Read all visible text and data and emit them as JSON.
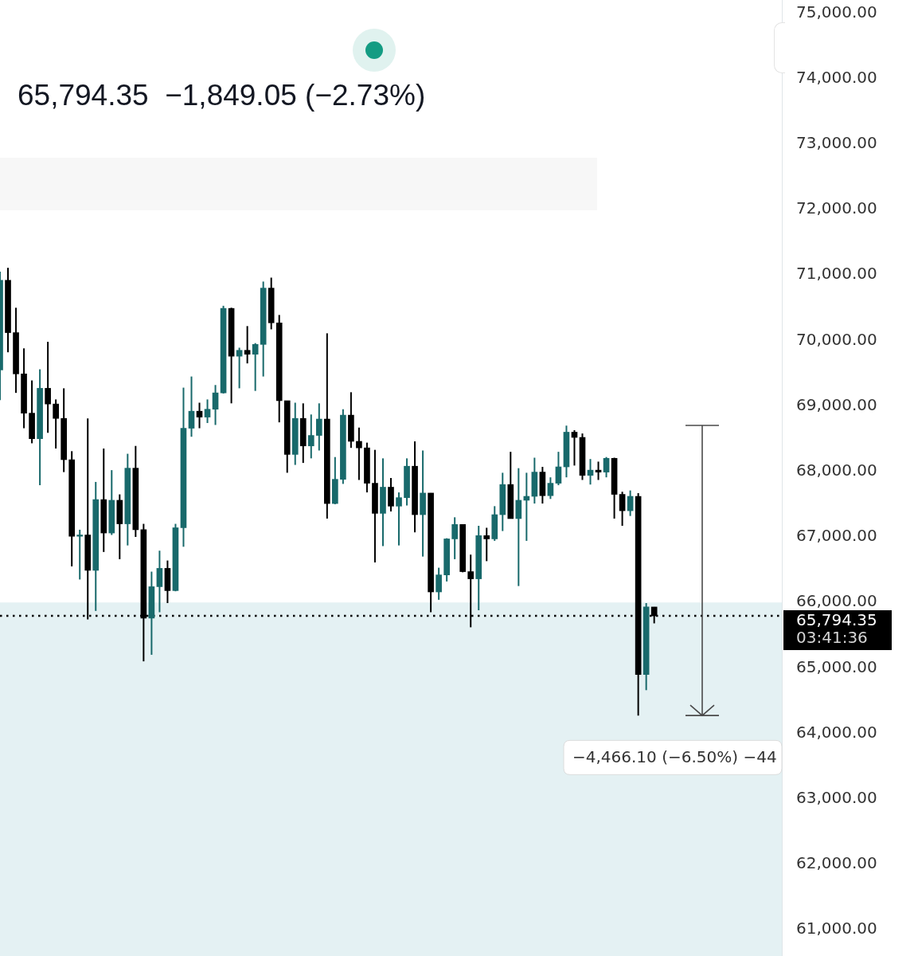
{
  "chart_data": {
    "type": "candlestick",
    "subtitle": "65,794.35  −1,849.05 (−2.73%)",
    "categories": [
      null,
      null,
      null,
      null,
      null,
      null,
      null,
      null,
      null,
      null,
      null,
      null,
      null,
      null,
      null,
      null,
      null,
      null,
      null,
      null,
      null,
      null,
      null,
      null,
      null,
      null,
      null,
      null,
      null,
      null,
      null,
      null,
      null,
      null,
      null,
      null,
      null,
      null,
      null,
      null,
      null,
      null,
      null,
      null,
      null,
      null,
      null,
      null,
      null,
      null,
      null,
      null,
      null,
      null,
      null,
      null,
      null,
      null,
      null,
      null,
      null,
      null,
      null,
      null,
      null,
      null,
      null,
      null,
      null,
      null,
      null,
      null,
      null,
      null,
      null,
      null,
      null,
      null,
      null,
      null,
      null,
      null,
      null,
      null,
      null,
      null,
      null,
      null,
      null,
      null,
      null,
      null,
      null,
      null,
      null,
      null,
      null,
      null,
      null
    ],
    "ohlc": [
      [
        69550,
        71050,
        69090,
        70920
      ],
      [
        70920,
        71110,
        69820,
        70120
      ],
      [
        70120,
        70500,
        69200,
        69490
      ],
      [
        69490,
        69880,
        68660,
        68890
      ],
      [
        68890,
        69390,
        68430,
        68500
      ],
      [
        68500,
        69560,
        67790,
        69270
      ],
      [
        69270,
        69980,
        68590,
        69030
      ],
      [
        69030,
        69100,
        68350,
        68810
      ],
      [
        68810,
        69270,
        67990,
        68180
      ],
      [
        68180,
        68310,
        66550,
        67010
      ],
      [
        67010,
        67110,
        66350,
        67030
      ],
      [
        67030,
        68810,
        65740,
        66490
      ],
      [
        66490,
        67840,
        65870,
        67570
      ],
      [
        67570,
        68350,
        66770,
        67060
      ],
      [
        67060,
        68020,
        67030,
        67560
      ],
      [
        67560,
        67650,
        66660,
        67200
      ],
      [
        67200,
        68270,
        66870,
        68050
      ],
      [
        68050,
        68390,
        67000,
        67110
      ],
      [
        67110,
        67200,
        65100,
        65760
      ],
      [
        65760,
        66470,
        65200,
        66240
      ],
      [
        66240,
        66790,
        65850,
        66520
      ],
      [
        66520,
        66640,
        65990,
        66180
      ],
      [
        66180,
        67200,
        66170,
        67140
      ],
      [
        67140,
        69280,
        66850,
        68660
      ],
      [
        68660,
        69450,
        68530,
        68920
      ],
      [
        68920,
        69050,
        68660,
        68830
      ],
      [
        68830,
        69100,
        68740,
        68950
      ],
      [
        68950,
        69320,
        68710,
        69200
      ],
      [
        69200,
        70530,
        69190,
        70490
      ],
      [
        70490,
        70500,
        69040,
        69760
      ],
      [
        69760,
        69890,
        69270,
        69850
      ],
      [
        69850,
        70220,
        69650,
        69790
      ],
      [
        69790,
        69960,
        69230,
        69940
      ],
      [
        69940,
        70900,
        69450,
        70800
      ],
      [
        70800,
        70960,
        70170,
        70270
      ],
      [
        70270,
        70390,
        68750,
        69080
      ],
      [
        69080,
        69080,
        67980,
        68260
      ],
      [
        68260,
        69050,
        68100,
        68810
      ],
      [
        68810,
        69040,
        68130,
        68390
      ],
      [
        68390,
        68870,
        68200,
        68550
      ],
      [
        68550,
        69040,
        68320,
        68800
      ],
      [
        68800,
        70110,
        67280,
        67510
      ],
      [
        67510,
        68220,
        67500,
        67880
      ],
      [
        67880,
        68950,
        67810,
        68860
      ],
      [
        68860,
        69210,
        68360,
        68460
      ],
      [
        68460,
        68670,
        67870,
        68360
      ],
      [
        68360,
        68440,
        67680,
        67820
      ],
      [
        67820,
        68330,
        66610,
        67360
      ],
      [
        67360,
        68200,
        66860,
        67760
      ],
      [
        67760,
        67900,
        67390,
        67470
      ],
      [
        67470,
        67680,
        66870,
        67600
      ],
      [
        67600,
        68200,
        67480,
        68080
      ],
      [
        68080,
        68460,
        67070,
        67340
      ],
      [
        67340,
        68320,
        66700,
        67670
      ],
      [
        67670,
        67670,
        65850,
        66160
      ],
      [
        66160,
        66530,
        66040,
        66420
      ],
      [
        66420,
        66980,
        66320,
        66970
      ],
      [
        66970,
        67300,
        66660,
        67190
      ],
      [
        67190,
        67190,
        66460,
        66470
      ],
      [
        66470,
        66730,
        65620,
        66360
      ],
      [
        66360,
        67170,
        65880,
        67020
      ],
      [
        67020,
        67140,
        66630,
        66970
      ],
      [
        66970,
        67470,
        66940,
        67340
      ],
      [
        67340,
        67980,
        67090,
        67800
      ],
      [
        67800,
        68300,
        67280,
        67280
      ],
      [
        67280,
        68050,
        66250,
        67560
      ],
      [
        67560,
        67980,
        66940,
        67620
      ],
      [
        67620,
        68210,
        67510,
        67990
      ],
      [
        67990,
        68070,
        67510,
        67630
      ],
      [
        67630,
        67910,
        67580,
        67820
      ],
      [
        67820,
        68300,
        67790,
        68070
      ],
      [
        68070,
        68700,
        67910,
        68600
      ],
      [
        68600,
        68630,
        68090,
        68520
      ],
      [
        68520,
        68580,
        67870,
        67940
      ],
      [
        67940,
        68190,
        67800,
        68020
      ],
      [
        68020,
        68150,
        67870,
        67990
      ],
      [
        67990,
        68220,
        67910,
        68200
      ],
      [
        68200,
        68210,
        67280,
        67650
      ],
      [
        67650,
        67690,
        67170,
        67400
      ],
      [
        67400,
        67710,
        67320,
        67620
      ],
      [
        67620,
        67670,
        64270,
        64900
      ],
      [
        64900,
        65990,
        64660,
        65930
      ],
      [
        65930,
        65930,
        65680,
        65794.35
      ],
      null,
      null,
      null,
      null,
      null,
      null,
      null,
      null,
      null,
      null,
      null,
      null,
      null,
      null,
      null,
      null
    ],
    "colors": [
      "#18696b",
      "#000000",
      "#000000",
      "#000000",
      "#000000",
      "#18696b",
      "#000000",
      "#000000",
      "#000000",
      "#000000",
      "#18696b",
      "#000000",
      "#18696b",
      "#000000",
      "#18696b",
      "#000000",
      "#18696b",
      "#000000",
      "#000000",
      "#18696b",
      "#18696b",
      "#000000",
      "#18696b",
      "#18696b",
      "#18696b",
      "#000000",
      "#18696b",
      "#18696b",
      "#18696b",
      "#000000",
      "#18696b",
      "#000000",
      "#18696b",
      "#18696b",
      "#000000",
      "#000000",
      "#000000",
      "#18696b",
      "#000000",
      "#18696b",
      "#18696b",
      "#000000",
      "#18696b",
      "#18696b",
      "#000000",
      "#000000",
      "#000000",
      "#000000",
      "#18696b",
      "#000000",
      "#18696b",
      "#18696b",
      "#000000",
      "#18696b",
      "#000000",
      "#18696b",
      "#18696b",
      "#18696b",
      "#000000",
      "#000000",
      "#18696b",
      "#000000",
      "#18696b",
      "#18696b",
      "#000000",
      "#18696b",
      "#18696b",
      "#18696b",
      "#000000",
      "#18696b",
      "#18696b",
      "#18696b",
      "#000000",
      "#000000",
      "#18696b",
      "#000000",
      "#18696b",
      "#000000",
      "#000000",
      "#18696b",
      "#000000",
      "#18696b",
      "#000000",
      null,
      null,
      null,
      null,
      null,
      null,
      null,
      null,
      null,
      null,
      null,
      null,
      null,
      null,
      null,
      null
    ],
    "ylim": [
      60600,
      75200
    ],
    "yticks": [
      {
        "value": 61000,
        "label": "61,000.00"
      },
      {
        "value": 62000,
        "label": "62,000.00"
      },
      {
        "value": 63000,
        "label": "63,000.00"
      },
      {
        "value": 64000,
        "label": "64,000.00"
      },
      {
        "value": 65000,
        "label": "65,000.00"
      },
      {
        "value": 66000,
        "label": "66,000.00"
      },
      {
        "value": 67000,
        "label": "67,000.00"
      },
      {
        "value": 68000,
        "label": "68,000.00"
      },
      {
        "value": 69000,
        "label": "69,000.00"
      },
      {
        "value": 70000,
        "label": "70,000.00"
      },
      {
        "value": 71000,
        "label": "71,000.00"
      },
      {
        "value": 72000,
        "label": "72,000.00"
      },
      {
        "value": 73000,
        "label": "73,000.00"
      },
      {
        "value": 74000,
        "label": "74,000.00"
      },
      {
        "value": 75000,
        "label": "75,000.00"
      }
    ],
    "tick_labels": "y",
    "bands": [
      {
        "axis": "y",
        "from": 60600,
        "to": 66000,
        "color": "#e4f1f3"
      }
    ],
    "ref_lines": [
      {
        "axis": "y",
        "value": 65794.35,
        "label": "65,794.35",
        "color": "#000000",
        "line_style": "dotted"
      }
    ],
    "annotations": [
      "03:41:36",
      "−4,466.10 (−6.50%) −44"
    ]
  }
}
